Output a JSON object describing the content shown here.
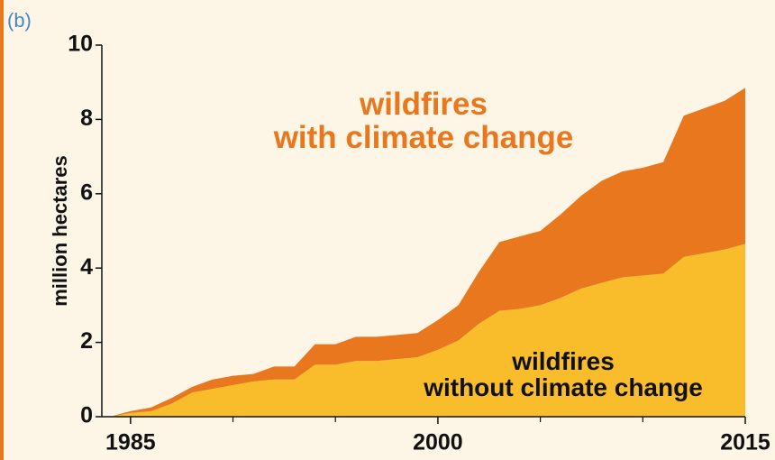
{
  "chart_data": {
    "type": "stacked-area",
    "panel_label": "(b)",
    "ylabel": "million hectares",
    "x": [
      1984,
      1985,
      1986,
      1987,
      1988,
      1989,
      1990,
      1991,
      1992,
      1993,
      1994,
      1995,
      1996,
      1997,
      1998,
      1999,
      2000,
      2001,
      2002,
      2003,
      2004,
      2005,
      2006,
      2007,
      2008,
      2009,
      2010,
      2011,
      2012,
      2013,
      2014,
      2015
    ],
    "series": [
      {
        "name": "wildfires\nwithout climate change",
        "color": "#f9bd2b",
        "values": [
          0,
          0.1,
          0.15,
          0.35,
          0.65,
          0.75,
          0.85,
          0.95,
          1.0,
          1.0,
          1.4,
          1.4,
          1.5,
          1.5,
          1.55,
          1.6,
          1.8,
          2.05,
          2.5,
          2.85,
          2.9,
          3.0,
          3.2,
          3.45,
          3.6,
          3.75,
          3.8,
          3.85,
          4.3,
          4.4,
          4.5,
          4.65
        ]
      },
      {
        "name": "wildfires\nwith climate change",
        "color": "#e8771e",
        "values": [
          0,
          0.05,
          0.1,
          0.15,
          0.15,
          0.25,
          0.25,
          0.2,
          0.35,
          0.35,
          0.55,
          0.55,
          0.65,
          0.65,
          0.65,
          0.65,
          0.8,
          0.95,
          1.4,
          1.85,
          1.95,
          2.0,
          2.25,
          2.5,
          2.75,
          2.85,
          2.9,
          3.0,
          3.8,
          3.9,
          4.0,
          4.2
        ]
      }
    ],
    "xlim": [
      1983.6,
      2015
    ],
    "xticks": [
      1985,
      2000,
      2015
    ],
    "xminorticks": [
      1990,
      1995,
      2005,
      2010
    ],
    "ylim": [
      0,
      10
    ],
    "yticks": [
      0,
      2,
      4,
      6,
      8,
      10
    ]
  }
}
